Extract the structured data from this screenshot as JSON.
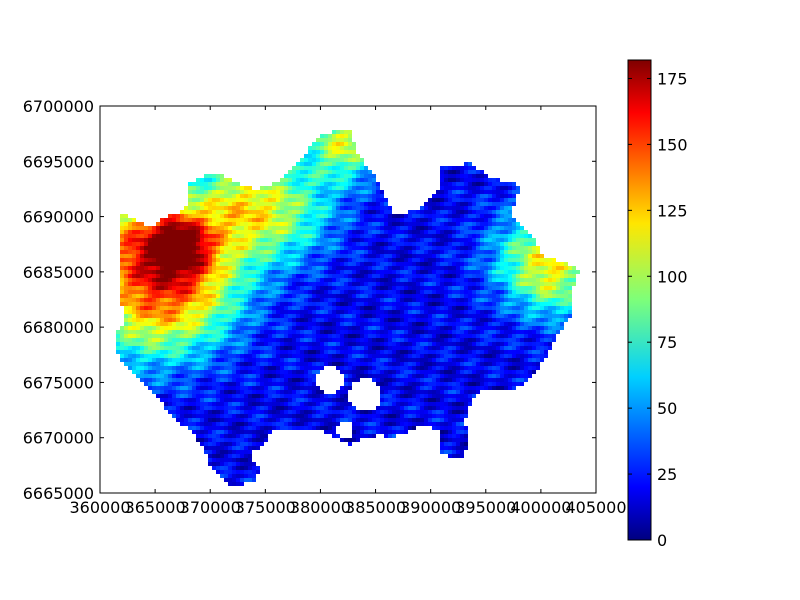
{
  "chart_data": {
    "type": "heatmap",
    "title": "",
    "xlabel": "",
    "ylabel": "",
    "xlim": [
      360000,
      405000
    ],
    "ylim": [
      6665000,
      6700000
    ],
    "x_ticks": [
      360000,
      365000,
      370000,
      375000,
      380000,
      385000,
      390000,
      395000,
      400000,
      405000
    ],
    "x_tick_labels": [
      "360000",
      "365000",
      "370000",
      "375000",
      "380000",
      "385000",
      "390000",
      "395000",
      "400000",
      "405000"
    ],
    "y_ticks": [
      6665000,
      6670000,
      6675000,
      6680000,
      6685000,
      6690000,
      6695000,
      6700000
    ],
    "y_tick_labels": [
      "6665000",
      "6670000",
      "6675000",
      "6680000",
      "6685000",
      "6690000",
      "6695000",
      "6700000"
    ],
    "colormap": "jet",
    "colorbar": {
      "range": [
        0,
        182
      ],
      "ticks": [
        0,
        25,
        50,
        75,
        100,
        125,
        150,
        175
      ],
      "tick_labels": [
        "0",
        "25",
        "50",
        "75",
        "100",
        "125",
        "150",
        "175"
      ]
    },
    "grid": false
  }
}
